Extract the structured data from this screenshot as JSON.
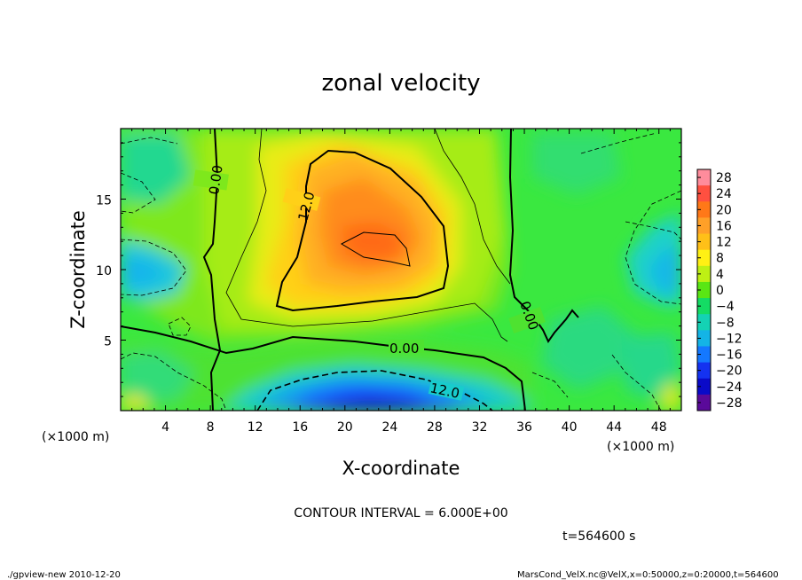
{
  "chart_data": {
    "type": "heatmap",
    "title": "zonal velocity",
    "xlabel": "X-coordinate",
    "ylabel": "Z-coordinate",
    "x_unit_left": "(×1000 m)",
    "x_unit_right": "(×1000 m)",
    "xlim": [
      0,
      50
    ],
    "ylim": [
      0,
      20
    ],
    "x_ticks": [
      4,
      8,
      12,
      16,
      20,
      24,
      28,
      32,
      36,
      40,
      44,
      48
    ],
    "y_ticks": [
      5,
      10,
      15
    ],
    "colorbar": {
      "labels": [
        "28",
        "24",
        "20",
        "16",
        "12",
        "8",
        "4",
        "0",
        "−4",
        "−8",
        "−12",
        "−16",
        "−20",
        "−24",
        "−28"
      ],
      "colors": [
        "#ff8c9c",
        "#ff5040",
        "#ff7818",
        "#ffa028",
        "#ffc018",
        "#fff014",
        "#bef014",
        "#5ae614",
        "#14dc64",
        "#14d2b4",
        "#14b4e6",
        "#1478ff",
        "#1432f0",
        "#0a0ac8",
        "#5a0a9a"
      ],
      "range": [
        -30,
        30
      ]
    },
    "contour_labels": [
      "0.00",
      "12.0",
      "0.00",
      "12.0",
      "0.00"
    ],
    "contour_interval_text": "CONTOUR INTERVAL = 6.000E+00",
    "time_text": "t=564600 s"
  },
  "footer": {
    "left": "./gpview-new  2010-12-20",
    "right": "MarsCond_VelX.nc@VelX,x=0:50000,z=0:20000,t=564600"
  }
}
